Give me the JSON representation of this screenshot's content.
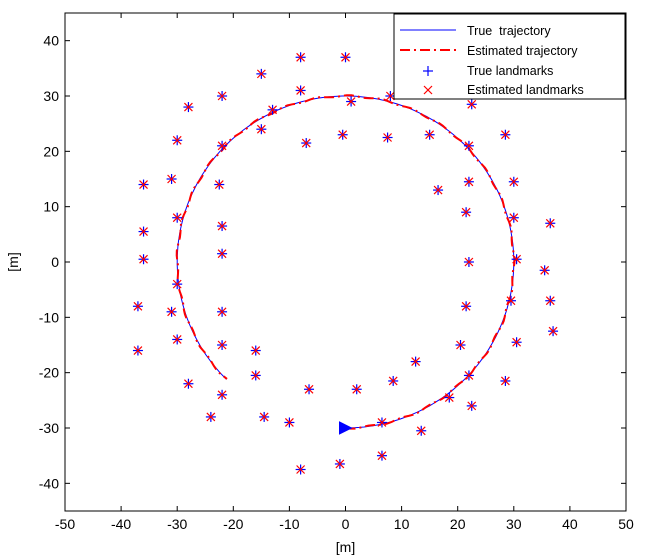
{
  "chart_data": {
    "type": "scatter",
    "title": "",
    "xlabel": "[m]",
    "ylabel": "[m]",
    "xlim": [
      -50,
      50
    ],
    "ylim": [
      -45,
      45
    ],
    "xticks": [
      -50,
      -40,
      -30,
      -20,
      -10,
      0,
      10,
      20,
      30,
      40,
      50
    ],
    "yticks": [
      -40,
      -30,
      -20,
      -10,
      0,
      10,
      20,
      30,
      40
    ],
    "grid": false,
    "legend_position": "top-right",
    "colors": {
      "true_trajectory": "#0000ff",
      "estimated_trajectory": "#ff0000",
      "true_landmarks": "#0000ff",
      "estimated_landmarks": "#ff0000",
      "axes": "#000000"
    },
    "series": [
      {
        "name": "True  trajectory",
        "kind": "line",
        "path": {
          "shape": "circle",
          "center": [
            0,
            0
          ],
          "radius": 30,
          "start_deg": -90,
          "end_deg": 225,
          "direction": "counterclockwise"
        }
      },
      {
        "name": "Estimated trajectory",
        "kind": "line",
        "path": {
          "shape": "circle",
          "center": [
            0,
            0
          ],
          "radius": 30,
          "start_deg": -90,
          "end_deg": 225,
          "direction": "counterclockwise"
        }
      },
      {
        "name": "True landmarks",
        "kind": "marker-plus",
        "points": [
          [
            0,
            37
          ],
          [
            -8,
            37
          ],
          [
            -15,
            34
          ],
          [
            -22,
            30
          ],
          [
            -28,
            28
          ],
          [
            -30,
            22
          ],
          [
            -31,
            15
          ],
          [
            -36,
            14
          ],
          [
            -30,
            8
          ],
          [
            -36,
            5.5
          ],
          [
            -36,
            0.5
          ],
          [
            -30,
            -4
          ],
          [
            -37,
            -8
          ],
          [
            -31,
            -9
          ],
          [
            -30,
            -14
          ],
          [
            -37,
            -16
          ],
          [
            -28,
            -22
          ],
          [
            -24,
            -28
          ],
          [
            -22,
            -24
          ],
          [
            -22,
            -15
          ],
          [
            -22,
            -9
          ],
          [
            -22,
            1.5
          ],
          [
            -22,
            6.5
          ],
          [
            -22.5,
            14
          ],
          [
            -22,
            21
          ],
          [
            -15,
            24
          ],
          [
            -13,
            27.5
          ],
          [
            -8,
            31
          ],
          [
            -7,
            21.5
          ],
          [
            -0.5,
            23
          ],
          [
            1,
            29
          ],
          [
            7.5,
            22.5
          ],
          [
            8,
            30
          ],
          [
            15,
            23
          ],
          [
            16.5,
            13
          ],
          [
            21.5,
            9
          ],
          [
            22,
            14.5
          ],
          [
            22,
            21
          ],
          [
            22.5,
            28.5
          ],
          [
            28.5,
            23
          ],
          [
            30,
            14.5
          ],
          [
            30,
            8
          ],
          [
            30.5,
            0.5
          ],
          [
            29.5,
            -7
          ],
          [
            30.5,
            -14.5
          ],
          [
            28.5,
            -21.5
          ],
          [
            22.5,
            -26
          ],
          [
            22,
            -20.5
          ],
          [
            20.5,
            -15
          ],
          [
            21.5,
            -8
          ],
          [
            22,
            0
          ],
          [
            36.5,
            7
          ],
          [
            35.5,
            -1.5
          ],
          [
            36.5,
            -7
          ],
          [
            37,
            -12.5
          ],
          [
            12.5,
            -18
          ],
          [
            18.5,
            -24.5
          ],
          [
            13.5,
            -30.5
          ],
          [
            6.5,
            -29
          ],
          [
            6.5,
            -35
          ],
          [
            8.5,
            -21.5
          ],
          [
            2,
            -23
          ],
          [
            -6.5,
            -23
          ],
          [
            -1,
            -36.5
          ],
          [
            -8,
            -37.5
          ],
          [
            -10,
            -29
          ],
          [
            -14.5,
            -28
          ],
          [
            -16,
            -20.5
          ],
          [
            -16,
            -16
          ]
        ]
      },
      {
        "name": "Estimated landmarks",
        "kind": "marker-x",
        "same_points_as": "True landmarks"
      }
    ],
    "start_marker": {
      "kind": "triangle-right",
      "x": 0,
      "y": -30
    }
  }
}
